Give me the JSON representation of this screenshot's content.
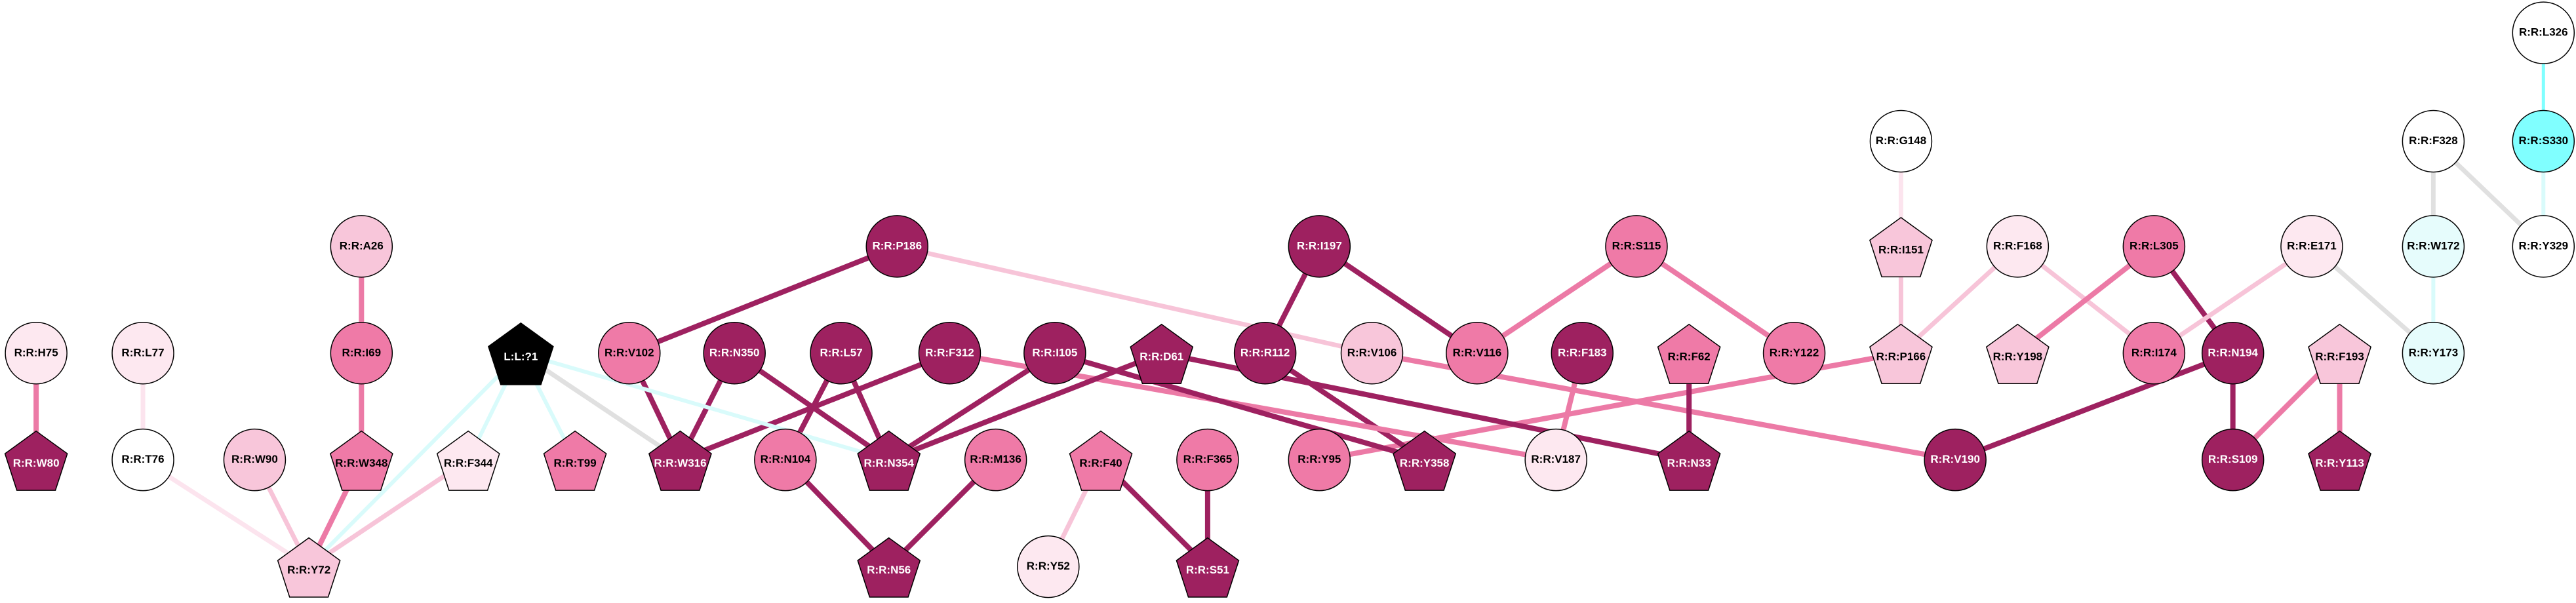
{
  "nodes": [
    {
      "label": "R:R:L326"
    },
    {
      "label": "R:R:S330"
    },
    {
      "label": "R:R:F328"
    },
    {
      "label": "R:R:Y329"
    },
    {
      "label": "R:R:W172"
    },
    {
      "label": "R:R:Y173"
    },
    {
      "label": "R:R:G148"
    },
    {
      "label": "R:R:I151"
    },
    {
      "label": "R:R:P166"
    },
    {
      "label": "R:R:F168"
    },
    {
      "label": "R:R:L305"
    },
    {
      "label": "R:R:E171"
    },
    {
      "label": "R:R:Y198"
    },
    {
      "label": "R:R:I174"
    },
    {
      "label": "R:R:N194"
    },
    {
      "label": "R:R:F193"
    },
    {
      "label": "R:R:S109"
    },
    {
      "label": "R:R:Y113"
    },
    {
      "label": "R:R:V190"
    },
    {
      "label": "R:R:S115"
    },
    {
      "label": "R:R:V116"
    },
    {
      "label": "R:R:Y122"
    },
    {
      "label": "R:R:I197"
    },
    {
      "label": "R:R:R112"
    },
    {
      "label": "R:R:V106"
    },
    {
      "label": "R:R:F183"
    },
    {
      "label": "R:R:F62"
    },
    {
      "label": "R:R:N33"
    },
    {
      "label": "R:R:V187"
    },
    {
      "label": "R:R:Y95"
    },
    {
      "label": "R:R:Y358"
    },
    {
      "label": "R:R:D61"
    },
    {
      "label": "R:R:I105"
    },
    {
      "label": "R:R:F312"
    },
    {
      "label": "R:R:L57"
    },
    {
      "label": "R:R:N350"
    },
    {
      "label": "R:R:P186"
    },
    {
      "label": "R:R:V102"
    },
    {
      "label": "R:R:W316"
    },
    {
      "label": "R:R:N354"
    },
    {
      "label": "R:R:N104"
    },
    {
      "label": "R:R:M136"
    },
    {
      "label": "R:R:F40"
    },
    {
      "label": "R:R:F365"
    },
    {
      "label": "R:R:N56"
    },
    {
      "label": "R:R:Y52"
    },
    {
      "label": "R:R:S51"
    },
    {
      "label": "L:L:?1"
    },
    {
      "label": "R:R:T99"
    },
    {
      "label": "R:R:F344"
    },
    {
      "label": "R:R:A26"
    },
    {
      "label": "R:R:I69"
    },
    {
      "label": "R:R:W348"
    },
    {
      "label": "R:R:W90"
    },
    {
      "label": "R:R:Y72"
    },
    {
      "label": "R:R:H75"
    },
    {
      "label": "R:R:W80"
    },
    {
      "label": "R:R:L77"
    },
    {
      "label": "R:R:T76"
    }
  ]
}
